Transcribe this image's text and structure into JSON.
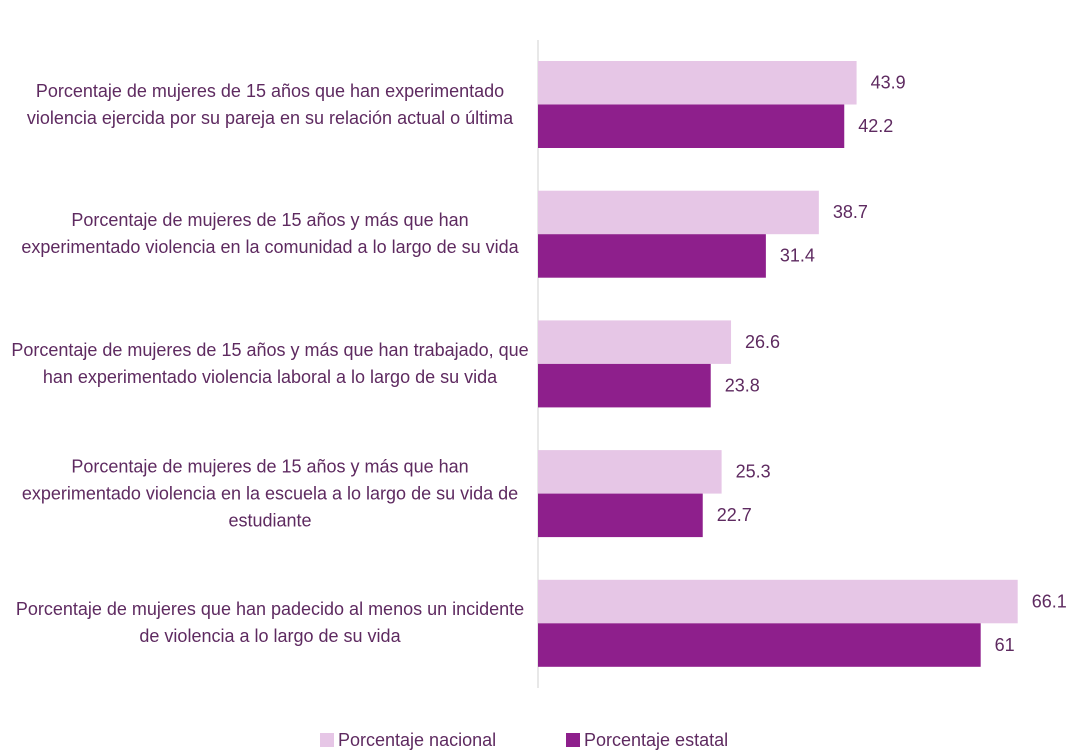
{
  "chart_data": {
    "type": "bar",
    "orientation": "horizontal",
    "categories": [
      "Porcentaje de mujeres de 15 años que han experimentado violencia ejercida por su pareja en su relación actual o última",
      "Porcentaje de mujeres de 15 años y más que han experimentado violencia en la comunidad a lo largo de su vida",
      "Porcentaje de mujeres de 15 años y más que han trabajado, que han experimentado violencia laboral a lo largo de su vida",
      "Porcentaje de mujeres de 15 años y más que han experimentado violencia en la escuela a lo largo de su vida de estudiante",
      "Porcentaje de mujeres que han padecido al menos un incidente de violencia a lo largo de su vida"
    ],
    "series": [
      {
        "name": "Porcentaje nacional",
        "color": "#e6c6e6",
        "values": [
          43.9,
          38.7,
          26.6,
          25.3,
          66.1
        ]
      },
      {
        "name": "Porcentaje estatal",
        "color": "#8e1f8c",
        "values": [
          42.2,
          31.4,
          23.8,
          22.7,
          61
        ]
      }
    ],
    "xlim": [
      0,
      70
    ],
    "grid": false,
    "legend": "bottom"
  }
}
